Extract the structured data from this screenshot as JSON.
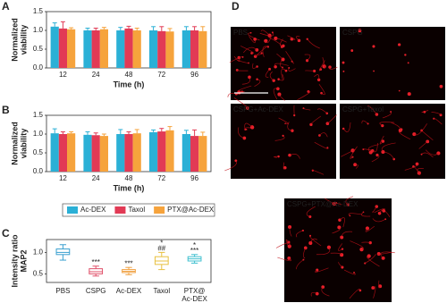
{
  "chart_data": [
    {
      "type": "bar",
      "panel": "A",
      "ylabel": [
        "Normalized",
        "viability"
      ],
      "xlabel": "Time (h)",
      "categories": [
        "12",
        "24",
        "48",
        "72",
        "96"
      ],
      "series": [
        {
          "name": "Ac-DEX",
          "color": "#2bb0d6",
          "values": [
            1.1,
            1.0,
            1.0,
            1.0,
            1.0
          ],
          "errors": [
            0.1,
            0.06,
            0.08,
            0.1,
            0.1
          ]
        },
        {
          "name": "Taxol",
          "color": "#e23a55",
          "values": [
            1.05,
            1.0,
            1.05,
            0.98,
            1.0
          ],
          "errors": [
            0.18,
            0.06,
            0.06,
            0.12,
            0.1
          ]
        },
        {
          "name": "PTX@Ac-DEX",
          "color": "#f6a33c",
          "values": [
            1.03,
            1.03,
            1.0,
            0.97,
            0.98
          ],
          "errors": [
            0.04,
            0.05,
            0.06,
            0.08,
            0.12
          ]
        }
      ],
      "ylim": [
        0,
        1.5
      ],
      "yticks": [
        {
          "value": 0,
          "label": "0.0"
        },
        {
          "value": 0.5,
          "label": "0.5"
        },
        {
          "value": 1,
          "label": "1.0"
        },
        {
          "value": 1.5,
          "label": "1.5"
        }
      ]
    },
    {
      "type": "bar",
      "panel": "B",
      "ylabel": [
        "Normalized",
        "viability"
      ],
      "xlabel": "Time (h)",
      "categories": [
        "12",
        "24",
        "48",
        "72",
        "96"
      ],
      "series": [
        {
          "name": "Ac-DEX",
          "color": "#2bb0d6",
          "values": [
            1.02,
            0.98,
            1.0,
            1.05,
            1.0
          ],
          "errors": [
            0.12,
            0.08,
            0.12,
            0.06,
            0.1
          ]
        },
        {
          "name": "Taxol",
          "color": "#e23a55",
          "values": [
            1.0,
            0.97,
            1.0,
            1.07,
            0.95
          ],
          "errors": [
            0.06,
            0.06,
            0.06,
            0.08,
            0.16
          ]
        },
        {
          "name": "PTX@Ac-DEX",
          "color": "#f6a33c",
          "values": [
            1.02,
            0.95,
            1.02,
            1.1,
            0.95
          ],
          "errors": [
            0.04,
            0.05,
            0.1,
            0.1,
            0.1
          ]
        }
      ],
      "ylim": [
        0,
        1.5
      ],
      "yticks": [
        {
          "value": 0,
          "label": "0.0"
        },
        {
          "value": 0.5,
          "label": "0.5"
        },
        {
          "value": 1,
          "label": "1.0"
        },
        {
          "value": 1.5,
          "label": "1.5"
        }
      ]
    },
    {
      "type": "box",
      "panel": "C",
      "ylabel": [
        "Intensity ratio",
        "MAP2"
      ],
      "categories": [
        "PBS",
        "CSPG",
        "Ac-DEX",
        "Taxol",
        "PTX@\nAc-DEX"
      ],
      "colors": [
        "#3aa0d0",
        "#e0506a",
        "#f0a040",
        "#e8c040",
        "#40c0d0"
      ],
      "boxes": [
        {
          "min": 0.82,
          "q1": 0.95,
          "median": 1.0,
          "q3": 1.08,
          "max": 1.18
        },
        {
          "min": 0.45,
          "q1": 0.5,
          "median": 0.55,
          "q3": 0.62,
          "max": 0.68
        },
        {
          "min": 0.48,
          "q1": 0.53,
          "median": 0.56,
          "q3": 0.6,
          "max": 0.65
        },
        {
          "min": 0.6,
          "q1": 0.72,
          "median": 0.8,
          "q3": 0.9,
          "max": 1.0
        },
        {
          "min": 0.75,
          "q1": 0.8,
          "median": 0.85,
          "q3": 0.9,
          "max": 0.95
        }
      ],
      "annotations": [
        [],
        [
          "***"
        ],
        [
          "***"
        ],
        [
          "*",
          "##"
        ],
        [
          "*",
          "***"
        ]
      ],
      "ylim": [
        0.3,
        1.3
      ],
      "yticks": [
        {
          "value": 0.5,
          "label": "0.5"
        },
        {
          "value": 1,
          "label": "1.0"
        }
      ]
    }
  ],
  "figure_d": {
    "panel": "D",
    "images": [
      "PBS",
      "CSPG",
      "CSPG+Ac-DEX",
      "CSPG+Taxol",
      "CSPG+PTX@Ac-DEX"
    ]
  }
}
